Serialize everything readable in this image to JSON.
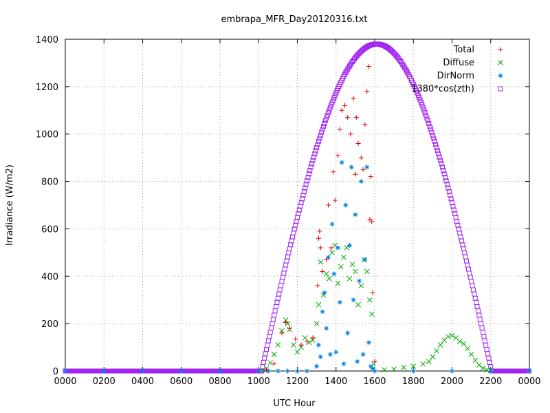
{
  "chart_data": {
    "type": "scatter",
    "title": "embrapa_MFR_Day20120316.txt",
    "xlabel": "UTC Hour",
    "ylabel": "Irradiance (W/m2)",
    "xlim": [
      0,
      24
    ],
    "ylim": [
      0,
      1400
    ],
    "x_ticks": [
      "0000",
      "0200",
      "0400",
      "0600",
      "0800",
      "1000",
      "1200",
      "1400",
      "1600",
      "1800",
      "2000",
      "2200",
      "0000"
    ],
    "y_ticks": [
      "0",
      "200",
      "400",
      "600",
      "800",
      "1000",
      "1200",
      "1400"
    ],
    "grid": true,
    "legend_position": "top-right",
    "series": [
      {
        "name": "Total",
        "marker": "+",
        "color": "#dd0000",
        "points": [
          [
            10.4,
            5
          ],
          [
            10.8,
            30
          ],
          [
            11.2,
            160
          ],
          [
            11.4,
            205
          ],
          [
            11.6,
            180
          ],
          [
            11.9,
            135
          ],
          [
            12.2,
            110
          ],
          [
            12.5,
            125
          ],
          [
            12.8,
            140
          ],
          [
            13.05,
            360
          ],
          [
            13.1,
            560
          ],
          [
            13.15,
            590
          ],
          [
            13.2,
            520
          ],
          [
            13.3,
            420
          ],
          [
            13.5,
            470
          ],
          [
            13.6,
            700
          ],
          [
            13.75,
            520
          ],
          [
            13.85,
            840
          ],
          [
            13.95,
            720
          ],
          [
            14.1,
            910
          ],
          [
            14.2,
            1020
          ],
          [
            14.3,
            1100
          ],
          [
            14.45,
            1120
          ],
          [
            14.6,
            1070
          ],
          [
            14.75,
            1000
          ],
          [
            14.9,
            1150
          ],
          [
            15.0,
            830
          ],
          [
            15.05,
            1070
          ],
          [
            15.15,
            960
          ],
          [
            15.3,
            900
          ],
          [
            15.4,
            850
          ],
          [
            15.5,
            1040
          ],
          [
            15.6,
            1180
          ],
          [
            15.7,
            1285
          ],
          [
            15.75,
            640
          ],
          [
            15.8,
            820
          ],
          [
            15.85,
            630
          ],
          [
            15.9,
            330
          ],
          [
            16.0,
            40
          ]
        ]
      },
      {
        "name": "Diffuse",
        "marker": "x",
        "color": "#00aa00",
        "points": [
          [
            10.2,
            3
          ],
          [
            10.4,
            10
          ],
          [
            10.6,
            35
          ],
          [
            10.8,
            70
          ],
          [
            11.0,
            110
          ],
          [
            11.2,
            170
          ],
          [
            11.4,
            215
          ],
          [
            11.5,
            200
          ],
          [
            11.6,
            175
          ],
          [
            11.8,
            110
          ],
          [
            12.0,
            80
          ],
          [
            12.2,
            100
          ],
          [
            12.4,
            140
          ],
          [
            12.6,
            120
          ],
          [
            12.8,
            130
          ],
          [
            13.0,
            200
          ],
          [
            13.1,
            280
          ],
          [
            13.2,
            460
          ],
          [
            13.35,
            320
          ],
          [
            13.5,
            410
          ],
          [
            13.65,
            390
          ],
          [
            13.8,
            500
          ],
          [
            13.95,
            530
          ],
          [
            14.1,
            370
          ],
          [
            14.25,
            440
          ],
          [
            14.4,
            480
          ],
          [
            14.55,
            520
          ],
          [
            14.7,
            390
          ],
          [
            14.85,
            450
          ],
          [
            15.0,
            420
          ],
          [
            15.15,
            280
          ],
          [
            15.3,
            360
          ],
          [
            15.45,
            470
          ],
          [
            15.6,
            420
          ],
          [
            15.75,
            300
          ],
          [
            15.85,
            240
          ],
          [
            15.95,
            30
          ],
          [
            16.5,
            5
          ],
          [
            17.0,
            8
          ],
          [
            17.5,
            15
          ],
          [
            18.0,
            20
          ],
          [
            18.5,
            30
          ],
          [
            18.8,
            40
          ],
          [
            19.0,
            60
          ],
          [
            19.2,
            85
          ],
          [
            19.4,
            110
          ],
          [
            19.6,
            130
          ],
          [
            19.8,
            145
          ],
          [
            20.0,
            150
          ],
          [
            20.2,
            140
          ],
          [
            20.4,
            125
          ],
          [
            20.6,
            115
          ],
          [
            20.8,
            95
          ],
          [
            21.0,
            70
          ],
          [
            21.2,
            45
          ],
          [
            21.4,
            25
          ],
          [
            21.6,
            12
          ],
          [
            21.8,
            5
          ],
          [
            22.0,
            2
          ]
        ]
      },
      {
        "name": "DirNorm",
        "marker": "*",
        "color": "#0080e0",
        "points": [
          [
            0,
            0
          ],
          [
            2,
            0
          ],
          [
            4,
            0
          ],
          [
            6,
            0
          ],
          [
            8,
            0
          ],
          [
            10,
            0
          ],
          [
            10.5,
            0
          ],
          [
            11,
            0
          ],
          [
            11.5,
            0
          ],
          [
            12,
            0
          ],
          [
            12.5,
            0
          ],
          [
            13.0,
            20
          ],
          [
            13.1,
            110
          ],
          [
            13.2,
            60
          ],
          [
            13.3,
            250
          ],
          [
            13.4,
            330
          ],
          [
            13.5,
            180
          ],
          [
            13.6,
            480
          ],
          [
            13.7,
            70
          ],
          [
            13.8,
            620
          ],
          [
            13.9,
            410
          ],
          [
            14.0,
            80
          ],
          [
            14.1,
            520
          ],
          [
            14.2,
            290
          ],
          [
            14.3,
            880
          ],
          [
            14.4,
            30
          ],
          [
            14.5,
            700
          ],
          [
            14.6,
            160
          ],
          [
            14.7,
            530
          ],
          [
            14.8,
            860
          ],
          [
            14.9,
            300
          ],
          [
            15.0,
            660
          ],
          [
            15.1,
            40
          ],
          [
            15.2,
            380
          ],
          [
            15.3,
            800
          ],
          [
            15.4,
            70
          ],
          [
            15.5,
            470
          ],
          [
            15.6,
            860
          ],
          [
            15.7,
            120
          ],
          [
            15.8,
            20
          ],
          [
            15.9,
            10
          ],
          [
            16,
            0
          ],
          [
            18,
            0
          ],
          [
            20,
            0
          ],
          [
            22,
            0
          ],
          [
            24,
            0
          ]
        ]
      },
      {
        "name": "1380*cos(zth)",
        "marker": "square",
        "color": "#a020f0",
        "curve": {
          "sunrise": 10.15,
          "sunset": 22.05,
          "peak_x": 16.1,
          "peak_y": 1380
        }
      }
    ]
  }
}
